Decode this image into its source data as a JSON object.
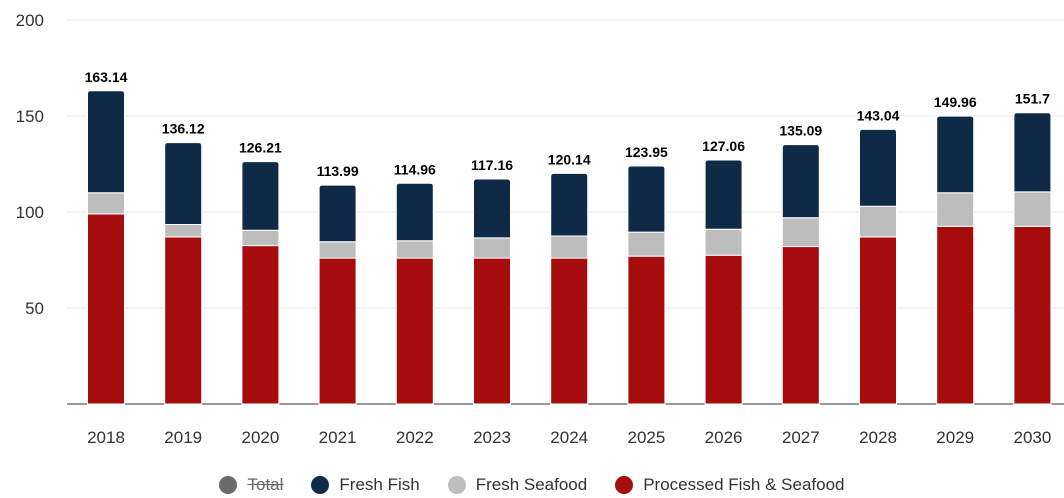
{
  "chart_data": {
    "type": "bar",
    "stacked": true,
    "categories": [
      "2018",
      "2019",
      "2020",
      "2021",
      "2022",
      "2023",
      "2024",
      "2025",
      "2026",
      "2027",
      "2028",
      "2029",
      "2030"
    ],
    "ylim": [
      0,
      200
    ],
    "yticks": [
      50,
      100,
      150,
      200
    ],
    "grid": true,
    "legend_position": "bottom",
    "series": [
      {
        "name": "Processed Fish & Seafood",
        "color": "#a50c0c",
        "values": [
          99,
          87,
          82.5,
          76,
          76,
          76,
          76,
          77,
          77.5,
          82,
          87,
          92.5,
          92.5
        ]
      },
      {
        "name": "Fresh Seafood",
        "color": "#bdbdbd",
        "values": [
          11,
          6.5,
          8,
          8.5,
          9,
          10.5,
          11.5,
          12.5,
          13.5,
          15,
          16,
          17.5,
          18
        ]
      },
      {
        "name": "Fresh Fish",
        "color": "#0e2a47",
        "values": [
          53.14,
          42.62,
          35.71,
          29.49,
          29.96,
          30.66,
          32.64,
          34.45,
          36.06,
          38.09,
          40.04,
          39.96,
          41.2
        ]
      }
    ],
    "totals": {
      "name": "Total",
      "hidden": true,
      "color": "#6b6b6b",
      "labels": [
        "163.14",
        "136.12",
        "126.21",
        "113.99",
        "114.96",
        "117.16",
        "120.14",
        "123.95",
        "127.06",
        "135.09",
        "143.04",
        "149.96",
        "151.7"
      ]
    }
  },
  "legend": [
    {
      "label": "Total",
      "color": "#6b6b6b",
      "hidden": true
    },
    {
      "label": "Fresh Fish",
      "color": "#0e2a47",
      "hidden": false
    },
    {
      "label": "Fresh Seafood",
      "color": "#bdbdbd",
      "hidden": false
    },
    {
      "label": "Processed Fish & Seafood",
      "color": "#a50c0c",
      "hidden": false
    }
  ]
}
